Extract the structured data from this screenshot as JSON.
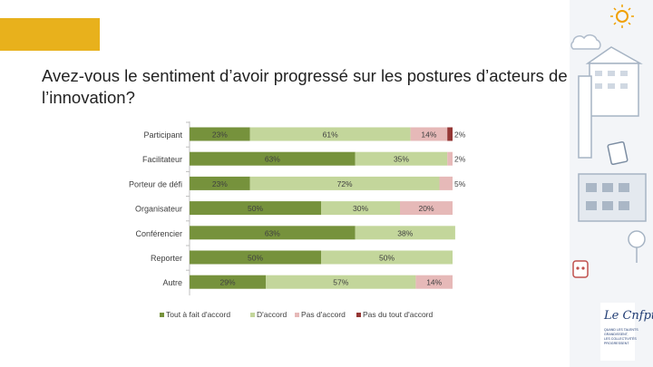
{
  "slide": {
    "title": "Avez-vous le sentiment d’avoir progressé sur les postures d’acteurs de l’innovation?",
    "accent_color": "#e8b11c"
  },
  "branding": {
    "logo_text": "Le Cnfpt",
    "tagline": [
      "QUAND LES TALENTS",
      "GRANDISSENT,",
      "LES COLLECTIVITÉS",
      "PROGRESSENT"
    ]
  },
  "chart_data": {
    "type": "bar",
    "orientation": "horizontal",
    "stacked": true,
    "percent": true,
    "categories": [
      "Participant",
      "Facilitateur",
      "Porteur de défi",
      "Organisateur",
      "Conférencier",
      "Reporter",
      "Autre"
    ],
    "series": [
      {
        "name": "Tout à fait d'accord",
        "color": "#76923c",
        "values": [
          23,
          63,
          23,
          50,
          63,
          50,
          29
        ]
      },
      {
        "name": "D'accord",
        "color": "#c3d69b",
        "values": [
          61,
          35,
          72,
          30,
          38,
          50,
          57
        ]
      },
      {
        "name": "Pas d'accord",
        "color": "#e6b9b8",
        "values": [
          14,
          2,
          5,
          20,
          0,
          0,
          14
        ]
      },
      {
        "name": "Pas du tout d'accord",
        "color": "#953735",
        "values": [
          2,
          0,
          0,
          0,
          0,
          0,
          0
        ]
      }
    ],
    "labels": [
      [
        "23%",
        "61%",
        "14%",
        "2%"
      ],
      [
        "63%",
        "35%",
        "2%",
        ""
      ],
      [
        "23%",
        "72%",
        "5%",
        ""
      ],
      [
        "50%",
        "30%",
        "20%",
        ""
      ],
      [
        "63%",
        "38%",
        "",
        ""
      ],
      [
        "50%",
        "50%",
        "",
        ""
      ],
      [
        "29%",
        "57%",
        "14%",
        ""
      ]
    ],
    "xlim": [
      0,
      100
    ],
    "legend_position": "bottom",
    "grid": false
  }
}
